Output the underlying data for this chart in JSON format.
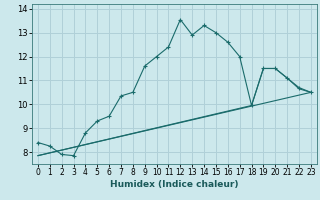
{
  "title": "",
  "xlabel": "Humidex (Indice chaleur)",
  "ylabel": "",
  "background_color": "#cce8ec",
  "grid_color": "#b0d0d8",
  "line_color": "#1a6b6b",
  "xlim": [
    -0.5,
    23.5
  ],
  "ylim": [
    7.5,
    14.2
  ],
  "x_major_ticks": [
    0,
    1,
    2,
    3,
    4,
    5,
    6,
    7,
    8,
    9,
    10,
    11,
    12,
    13,
    14,
    15,
    16,
    17,
    18,
    19,
    20,
    21,
    22,
    23
  ],
  "y_major_ticks": [
    8,
    9,
    10,
    11,
    12,
    13,
    14
  ],
  "curve1_x": [
    0,
    1,
    2,
    3,
    4,
    5,
    6,
    7,
    8,
    9,
    10,
    11,
    12,
    13,
    14,
    15,
    16,
    17,
    18,
    19,
    20,
    21,
    22,
    23
  ],
  "curve1_y": [
    8.4,
    8.25,
    7.9,
    7.85,
    8.8,
    9.3,
    9.5,
    10.35,
    10.5,
    11.6,
    12.0,
    12.4,
    13.55,
    12.9,
    13.3,
    13.0,
    12.6,
    12.0,
    9.95,
    11.5,
    11.5,
    11.1,
    10.7,
    10.5
  ],
  "curve2_x": [
    0,
    23
  ],
  "curve2_y": [
    7.85,
    10.5
  ],
  "curve3_x": [
    0,
    18,
    19,
    20,
    21,
    22,
    23
  ],
  "curve3_y": [
    7.85,
    9.95,
    11.5,
    11.5,
    11.1,
    10.65,
    10.5
  ],
  "xlabel_fontsize": 6.5,
  "tick_fontsize": 5.5
}
